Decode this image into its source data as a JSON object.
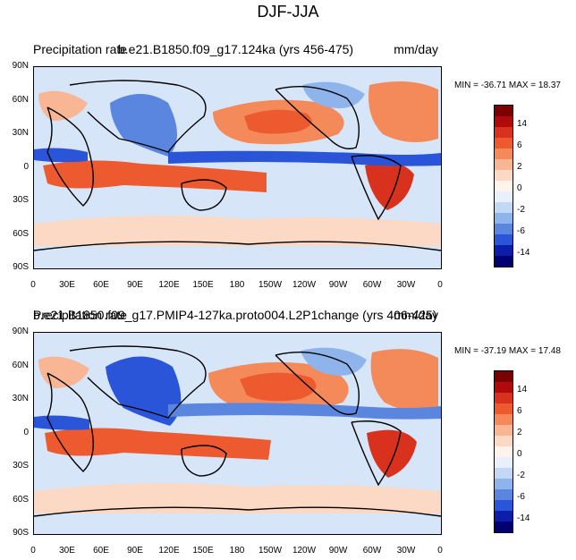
{
  "title": "DJF-JJA",
  "panels": [
    {
      "left_title": "Precipitation rate",
      "center_title": "b.e21.B1850.f09_g17.124ka (yrs 456-475)",
      "units": "mm/day",
      "minmax": "MIN = -36.71 MAX = 18.37"
    },
    {
      "left_title": "Precipitation rate",
      "center_title": "b.e21.B1850.f09_g17.PMIP4-127ka.proto004.L2P1change (yrs 406-425)",
      "units": "mm/day",
      "minmax": "MIN = -37.19 MAX = 17.48"
    }
  ],
  "lat_labels": [
    "90N",
    "60N",
    "30N",
    "0",
    "30S",
    "60S",
    "90S"
  ],
  "lon_labels": [
    "0",
    "30E",
    "60E",
    "90E",
    "120E",
    "150E",
    "180",
    "150W",
    "120W",
    "90W",
    "60W",
    "30W",
    "0"
  ],
  "colorbar": {
    "labels": [
      "14",
      "6",
      "2",
      "0",
      "-2",
      "-6",
      "-14"
    ],
    "colors": [
      "#7a0000",
      "#b00a0a",
      "#d8321e",
      "#ee5a30",
      "#f48a5a",
      "#f8b694",
      "#fcd9c4",
      "#fff4ec",
      "#e8f1fb",
      "#c2d8f4",
      "#8fb4ec",
      "#5a86e0",
      "#2b55d8",
      "#0c1ea8",
      "#000070"
    ]
  }
}
